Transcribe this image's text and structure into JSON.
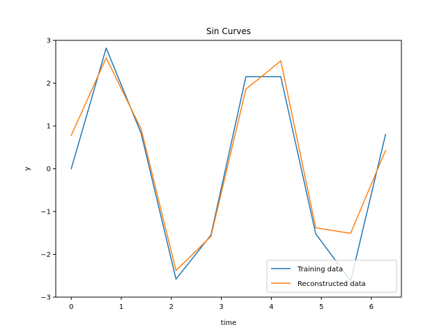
{
  "chart_data": {
    "type": "line",
    "title": "Sin Curves",
    "xlabel": "time",
    "ylabel": "y",
    "xlim": [
      -0.31,
      6.6
    ],
    "ylim": [
      -3,
      3
    ],
    "xticks": [
      0,
      1,
      2,
      3,
      4,
      5,
      6
    ],
    "yticks": [
      -3,
      -2,
      -1,
      0,
      1,
      2,
      3
    ],
    "xtick_labels": [
      "0",
      "1",
      "2",
      "3",
      "4",
      "5",
      "6"
    ],
    "ytick_labels": [
      "−3",
      "−2",
      "−1",
      "0",
      "1",
      "2",
      "3"
    ],
    "grid": false,
    "legend_position": "lower-right",
    "x": [
      0,
      0.698,
      1.396,
      2.094,
      2.793,
      3.491,
      4.189,
      4.887,
      5.585,
      6.283
    ],
    "series": [
      {
        "name": "Training data",
        "color": "#1f77b4",
        "values": [
          0.0,
          2.82,
          0.83,
          -2.58,
          -1.55,
          2.15,
          2.15,
          -1.52,
          -2.62,
          0.8
        ]
      },
      {
        "name": "Reconstructed data",
        "color": "#ff7f0e",
        "values": [
          0.78,
          2.59,
          0.93,
          -2.38,
          -1.58,
          1.86,
          2.52,
          -1.38,
          -1.51,
          0.43
        ]
      }
    ]
  }
}
